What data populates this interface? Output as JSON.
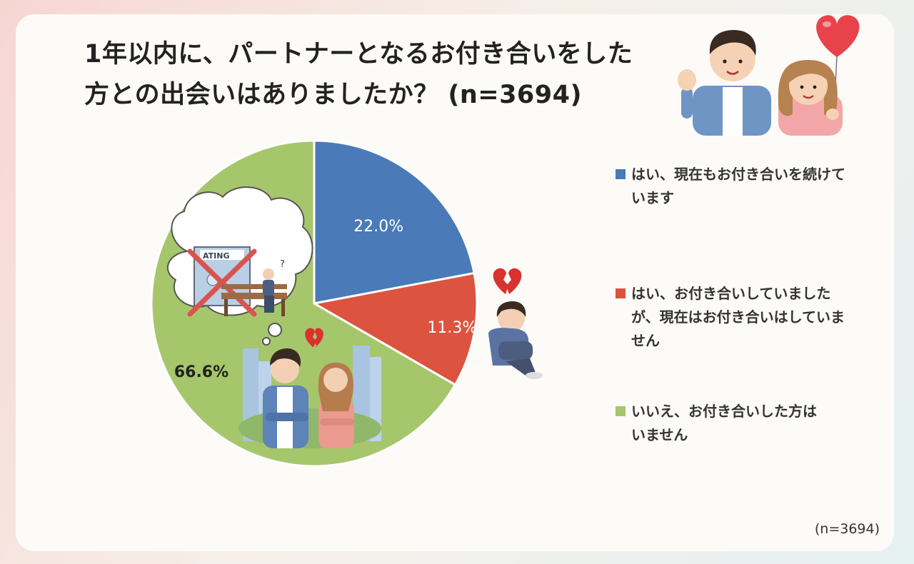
{
  "title_lines": [
    "1年以内に、パートナーとなるお付き合いをした",
    "方との出会いはありましたか？ (n=3694)"
  ],
  "note": "(n=3694)",
  "colors": {
    "yes_current": "#4a7ab8",
    "yes_ended": "#dc5440",
    "no": "#a6c66c"
  },
  "illustrations": [
    "couple-with-heart-balloon",
    "sad-person-with-broken-heart",
    "thought-bubble-crossed-dating-sign",
    "couple-with-broken-heart-city"
  ],
  "chart_data": {
    "type": "pie",
    "title": "1年以内に、パートナーとなるお付き合いをした方との出会いはありましたか？ (n=3694)",
    "slices": [
      {
        "label": "はい、現在もお付き合いを続けています",
        "legend_lines": [
          "はい、現在もお付き合いを続けて",
          "います"
        ],
        "value": 22.0,
        "display": "22.0%",
        "color": "#4a7ab8"
      },
      {
        "label": "はい、お付き合いしていましたが、現在はお付き合いはしていません",
        "legend_lines": [
          "はい、お付き合いしていました",
          "が、現在はお付き合いはしていま",
          "せん"
        ],
        "value": 11.3,
        "display": "11.3%",
        "color": "#dc5440"
      },
      {
        "label": "いいえ、お付き合いした方はいません",
        "legend_lines": [
          "いいえ、お付き合いした方は",
          "いません"
        ],
        "value": 66.6,
        "display": "66.6%",
        "color": "#a6c66c"
      }
    ],
    "start_angle_deg": 0,
    "direction": "clockwise",
    "legend_position": "right"
  }
}
